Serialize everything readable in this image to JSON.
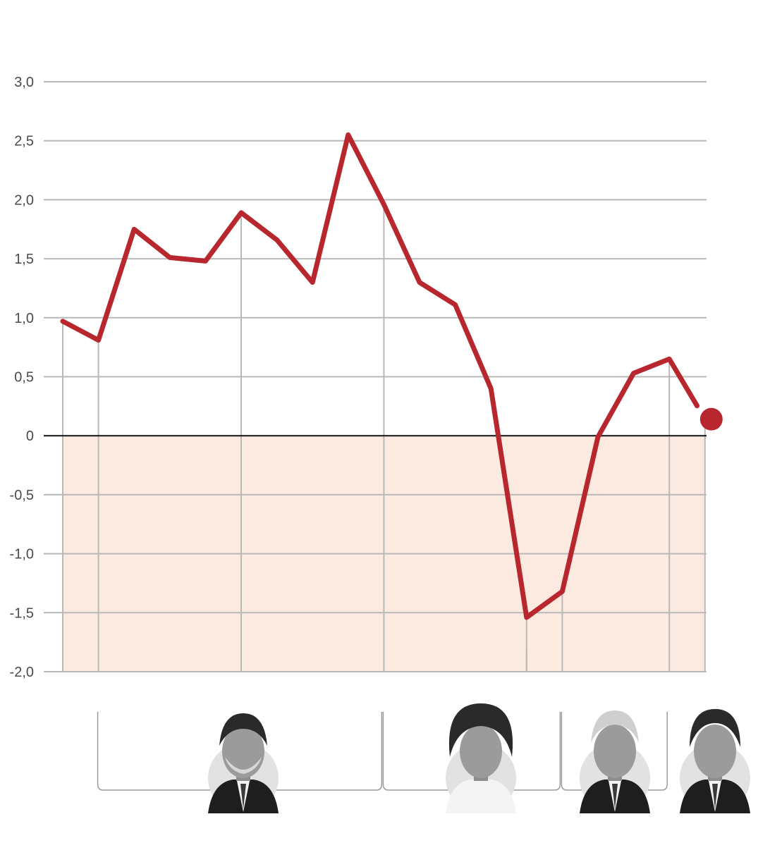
{
  "chart_data": {
    "type": "line",
    "title": "",
    "xlabel": "",
    "ylabel": "",
    "ylim": [
      -2.0,
      3.0
    ],
    "yticks": [
      "3,0",
      "2,5",
      "2,0",
      "1,5",
      "1,0",
      "0,5",
      "0",
      "-0,5",
      "-1,0",
      "-1,5",
      "-2,0"
    ],
    "ytick_values": [
      3.0,
      2.5,
      2.0,
      1.5,
      1.0,
      0.5,
      0.0,
      -0.5,
      -1.0,
      -1.5,
      -2.0
    ],
    "grid": true,
    "negative_area_fill": true,
    "series": [
      {
        "values": [
          0.97,
          0.81,
          1.75,
          1.51,
          1.48,
          1.89,
          1.66,
          1.3,
          2.55,
          1.96,
          1.3,
          1.11,
          0.4,
          -1.54,
          -1.32,
          -0.01,
          0.53,
          0.65,
          0.14
        ]
      }
    ],
    "x_index_range": [
      0,
      18
    ],
    "period_dividers_at_index": [
      1,
      5,
      9,
      13,
      14,
      17,
      18
    ],
    "minor_marker_at_index": [
      0,
      13
    ],
    "last_point_marker": true,
    "periods": [
      {
        "start_index": 1,
        "end_index": 9,
        "portrait": "portrait-1"
      },
      {
        "start_index": 9,
        "end_index": 14,
        "portrait": "portrait-2"
      },
      {
        "start_index": 14,
        "end_index": 17,
        "portrait": "portrait-3"
      },
      {
        "start_index": 17,
        "end_index": 18,
        "portrait": "portrait-4"
      }
    ]
  },
  "colors": {
    "line": "#b8262e",
    "negative_fill": "#fce9e0",
    "grid": "#b9b9b9",
    "zero_line": "#111111",
    "tick_text": "#4a4a4a"
  }
}
